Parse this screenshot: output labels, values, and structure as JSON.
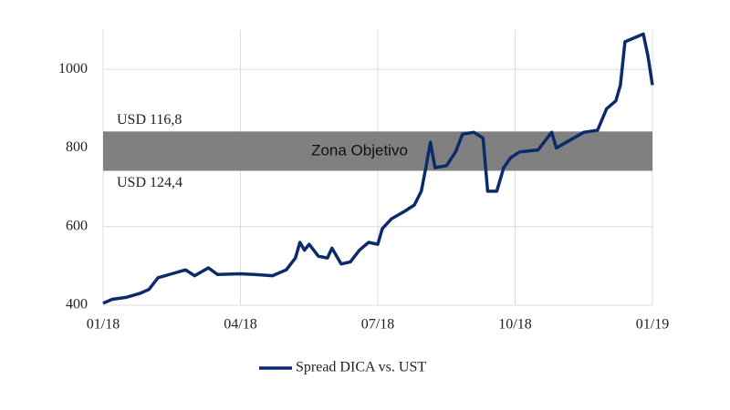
{
  "chart_data": {
    "type": "line",
    "xlim": [
      0,
      12
    ],
    "xticks": [
      {
        "value": 0,
        "label": "01/18"
      },
      {
        "value": 3,
        "label": "04/18"
      },
      {
        "value": 6,
        "label": "07/18"
      },
      {
        "value": 9,
        "label": "10/18"
      },
      {
        "value": 12,
        "label": "01/19"
      }
    ],
    "ylim": [
      400,
      1100
    ],
    "yticks": [
      400,
      600,
      800,
      1000
    ],
    "grid": true,
    "target_band": {
      "range": [
        742,
        842
      ],
      "label": "Zona Objetivo",
      "upper_label": "USD 116,8",
      "lower_label": "USD 124,4",
      "color": "#808080"
    },
    "series": [
      {
        "name": "Spread DICA vs. UST",
        "color": "#0d2a6b",
        "x": [
          0,
          0.2,
          0.5,
          0.8,
          1.0,
          1.2,
          1.5,
          1.8,
          2.0,
          2.3,
          2.5,
          3.0,
          3.3,
          3.7,
          4.0,
          4.2,
          4.3,
          4.4,
          4.5,
          4.7,
          4.9,
          5.0,
          5.2,
          5.4,
          5.6,
          5.8,
          6.0,
          6.1,
          6.3,
          6.6,
          6.8,
          6.95,
          7.05,
          7.15,
          7.25,
          7.5,
          7.7,
          7.85,
          8.1,
          8.3,
          8.4,
          8.6,
          8.75,
          8.9,
          9.1,
          9.5,
          9.8,
          9.9,
          10.2,
          10.5,
          10.8,
          11.0,
          11.2,
          11.3,
          11.4,
          11.7,
          11.8,
          11.9,
          12.0
        ],
        "values": [
          405,
          415,
          420,
          430,
          440,
          470,
          480,
          490,
          475,
          495,
          478,
          480,
          478,
          475,
          490,
          520,
          560,
          540,
          555,
          525,
          520,
          545,
          505,
          510,
          540,
          560,
          555,
          595,
          620,
          640,
          655,
          690,
          750,
          815,
          750,
          755,
          790,
          835,
          840,
          825,
          690,
          690,
          750,
          775,
          790,
          795,
          840,
          800,
          820,
          840,
          845,
          900,
          920,
          960,
          1070,
          1085,
          1090,
          1035,
          960
        ]
      }
    ]
  }
}
